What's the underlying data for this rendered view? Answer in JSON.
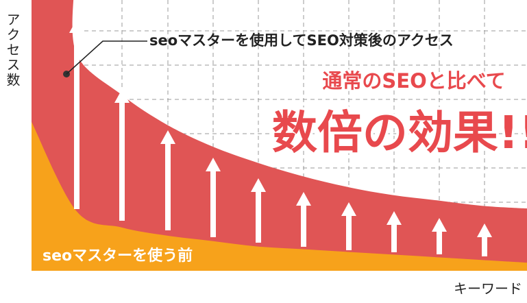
{
  "chart_data": {
    "type": "area",
    "ylabel": "アクセス数",
    "xlabel": "キーワード",
    "annotations": {
      "after_label": "seoマスターを使用してSEO対策後のアクセス",
      "before_label": "seoマスターを使う前",
      "headline_small": "通常のSEOと比べて",
      "headline_large": "数倍の効果!!"
    },
    "grid": true,
    "legend": "none",
    "series": [
      {
        "name": "seoマスターを使用してSEO対策後のアクセス",
        "role": "after",
        "color": "#e05555",
        "values": [
          100,
          80,
          65,
          54,
          46,
          40,
          35,
          31,
          28,
          26,
          24,
          23
        ]
      },
      {
        "name": "seoマスターを使う前",
        "role": "before",
        "color": "#f7a21b",
        "values": [
          55,
          22,
          16,
          13,
          11,
          9,
          8,
          7,
          6,
          5,
          4,
          3
        ]
      }
    ],
    "arrows": 11
  },
  "colors": {
    "after_fill": "#e05555",
    "before_fill": "#f7a21b",
    "headline": "#e8494d",
    "grid": "#9a9a9a",
    "arrow": "#ffffff",
    "text": "#222222"
  }
}
